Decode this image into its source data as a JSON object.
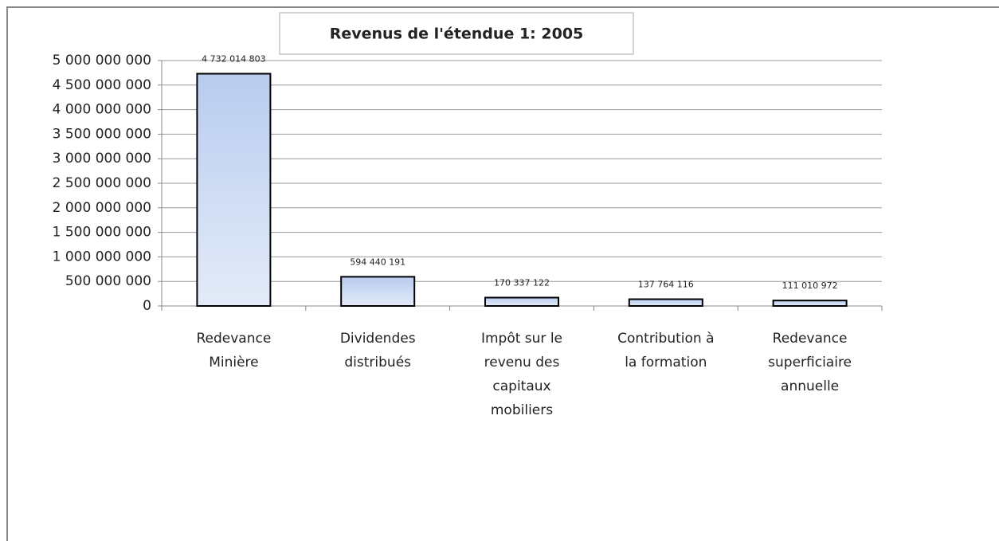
{
  "chart_data": {
    "type": "bar",
    "title": "Revenus de l'étendue 1: 2005",
    "categories": [
      "Redevance Minière",
      "Dividendes distribués",
      "Impôt sur le revenu des capitaux mobiliers",
      "Contribution à la formation",
      "Redevance superficiaire annuelle"
    ],
    "values": [
      4732014803,
      594440191,
      170337122,
      137764116,
      111010972
    ],
    "value_labels": [
      "4 732 014 803",
      "594 440 191",
      "170 337 122",
      "137 764 116",
      "111 010 972"
    ],
    "color": "#c6d5f0",
    "ylim": [
      0,
      5000000000
    ],
    "yticks": [
      0,
      {
        "value": 500000000,
        "label": "500 000 000"
      },
      {
        "value": 1000000000,
        "label": "1 000 000 000"
      },
      {
        "value": 1500000000,
        "label": "1 500 000 000"
      },
      {
        "value": 2000000000,
        "label": "2 000 000 000"
      },
      {
        "value": 2500000000,
        "label": "2 500 000 000"
      },
      {
        "value": 3000000000,
        "label": "3 000 000 000"
      },
      {
        "value": 3500000000,
        "label": "3 500 000 000"
      },
      {
        "value": 4000000000,
        "label": "4 000 000 000"
      },
      {
        "value": 4500000000,
        "label": "4 500 000 000"
      },
      {
        "value": 5000000000,
        "label": "5 000 000 000"
      }
    ],
    "grid": true
  }
}
